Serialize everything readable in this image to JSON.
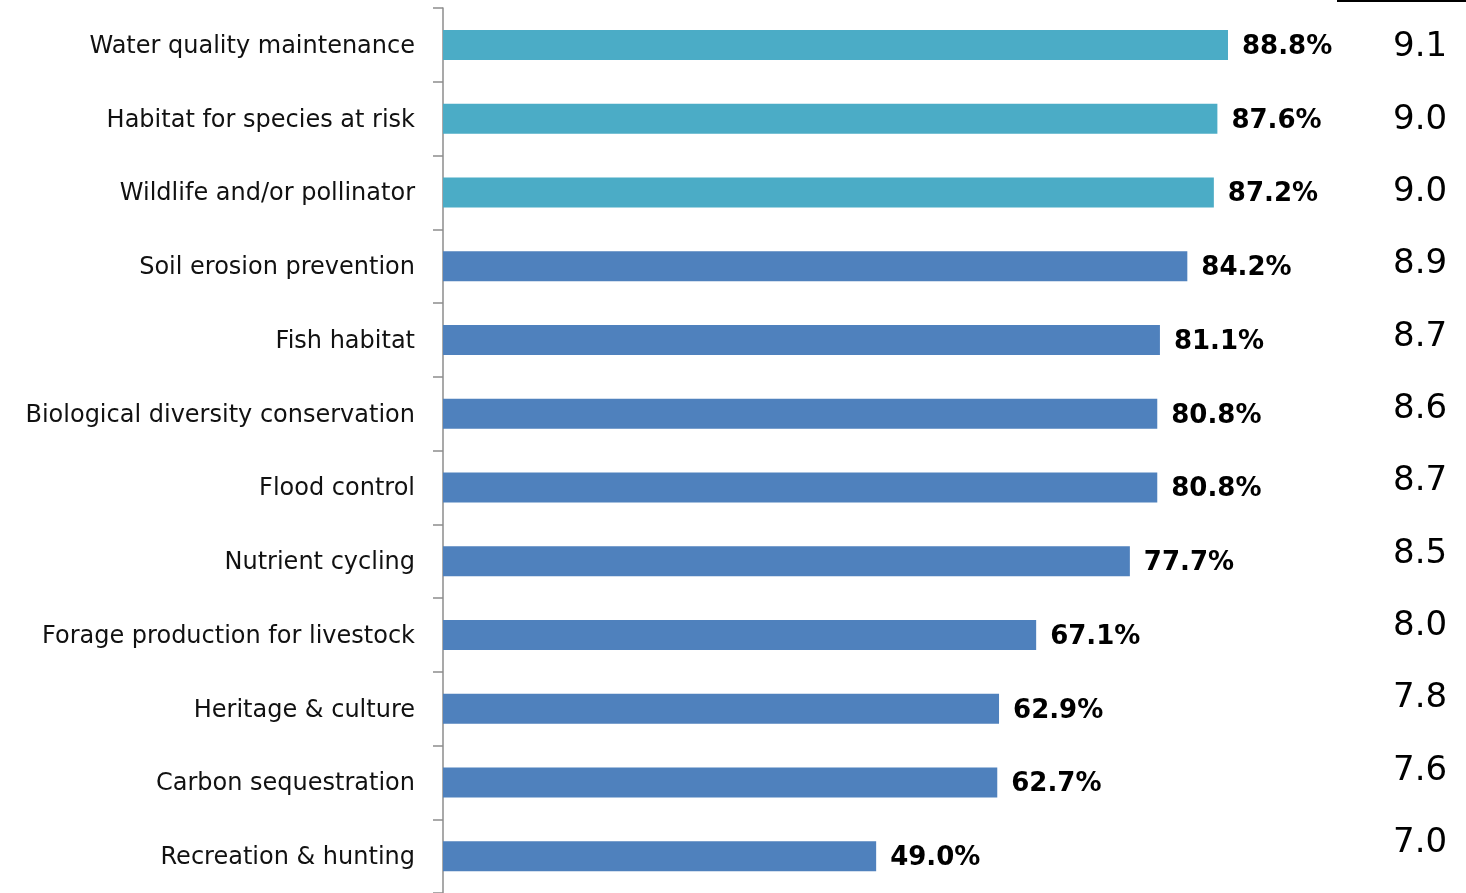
{
  "chart_data": {
    "type": "bar",
    "orientation": "horizontal",
    "categories": [
      "Water quality maintenance",
      "Habitat for species at risk",
      "Wildlife and/or pollinator",
      "Soil erosion prevention",
      "Fish habitat",
      "Biological diversity conservation",
      "Flood control",
      "Nutrient cycling",
      "Forage production for livestock",
      "Heritage & culture",
      "Carbon sequestration",
      "Recreation & hunting"
    ],
    "values": [
      88.8,
      87.6,
      87.2,
      84.2,
      81.1,
      80.8,
      80.8,
      77.7,
      67.1,
      62.9,
      62.7,
      49.0
    ],
    "value_labels": [
      "88.8%",
      "87.6%",
      "87.2%",
      "84.2%",
      "81.1%",
      "80.8%",
      "80.8%",
      "77.7%",
      "67.1%",
      "62.9%",
      "62.7%",
      "49.0%"
    ],
    "colors": [
      "#4bacc6",
      "#4bacc6",
      "#4bacc6",
      "#4f81bd",
      "#4f81bd",
      "#4f81bd",
      "#4f81bd",
      "#4f81bd",
      "#4f81bd",
      "#4f81bd",
      "#4f81bd",
      "#4f81bd"
    ],
    "annotations": [
      "9.1",
      "9.0",
      "9.0",
      "8.9",
      "8.7",
      "8.6",
      "8.7",
      "8.5",
      "8.0",
      "7.8",
      "7.6",
      "7.0"
    ],
    "tick_labels": "y",
    "grid": false
  }
}
